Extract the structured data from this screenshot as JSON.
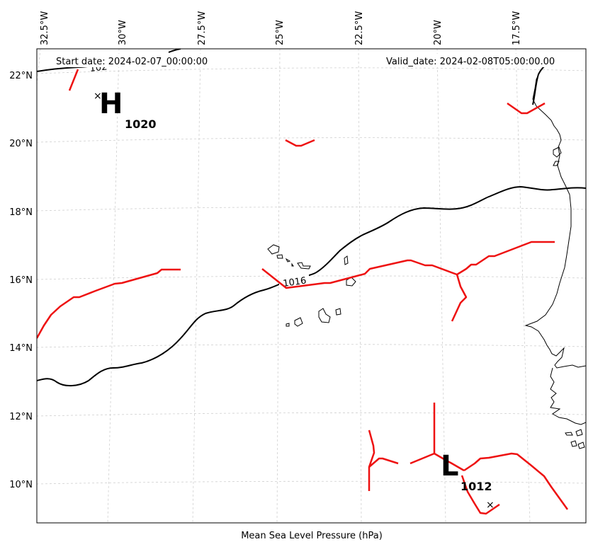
{
  "map": {
    "start_date": "Start date: 2024-02-07_00:00:00",
    "valid_date": "Valid_date: 2024-02-08T05:00:00.00",
    "caption": "Mean Sea Level Pressure (hPa)",
    "lon_labels": [
      "32.5°W",
      "30°W",
      "27.5°W",
      "25°W",
      "22.5°W",
      "20°W",
      "17.5°W"
    ],
    "lat_labels": [
      "22°N",
      "20°N",
      "18°N",
      "16°N",
      "14°N",
      "12°N",
      "10°N"
    ],
    "high": {
      "letter": "H",
      "value": "1020",
      "marker": "×"
    },
    "low": {
      "letter": "L",
      "value": "1012",
      "marker": "×"
    },
    "isobar_labels": [
      "1016",
      "102"
    ],
    "colors": {
      "isobar": "#000000",
      "trough": "#ee1111",
      "grid": "#cccccc",
      "coast": "#000000"
    }
  }
}
